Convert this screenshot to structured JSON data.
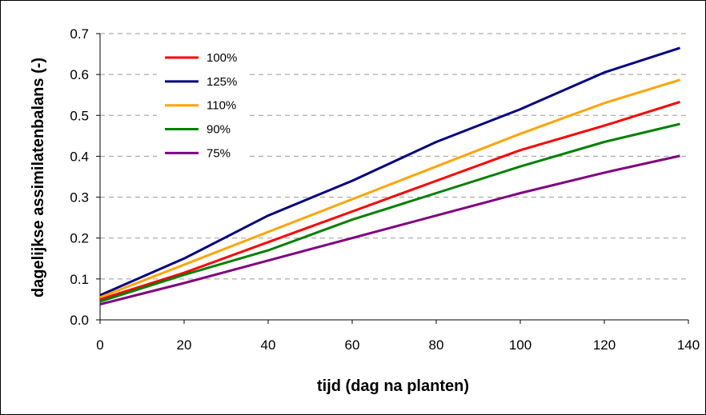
{
  "chart_data": {
    "type": "line",
    "xlabel": "tijd (dag na planten)",
    "ylabel": "dagelijkse assimilatenbalans (-)",
    "xlim": [
      0,
      140
    ],
    "ylim": [
      0,
      0.7
    ],
    "x_ticks": [
      "0",
      "20",
      "40",
      "60",
      "80",
      "100",
      "120",
      "140"
    ],
    "y_ticks": [
      "0.0",
      "0.1",
      "0.2",
      "0.3",
      "0.4",
      "0.5",
      "0.6",
      "0.7"
    ],
    "grid": "horizontal dashed",
    "legend_position": "top-left",
    "series": [
      {
        "name": "100%",
        "color": "#ff0000",
        "x": [
          0,
          20,
          40,
          60,
          80,
          100,
          120,
          138
        ],
        "values": [
          0.05,
          0.115,
          0.19,
          0.265,
          0.34,
          0.415,
          0.475,
          0.533
        ]
      },
      {
        "name": "125%",
        "color": "#000080",
        "x": [
          0,
          20,
          40,
          60,
          80,
          100,
          120,
          138
        ],
        "values": [
          0.06,
          0.15,
          0.255,
          0.34,
          0.435,
          0.515,
          0.605,
          0.665
        ]
      },
      {
        "name": "110%",
        "color": "#ffa500",
        "x": [
          0,
          20,
          40,
          60,
          80,
          100,
          120,
          138
        ],
        "values": [
          0.055,
          0.135,
          0.215,
          0.295,
          0.375,
          0.455,
          0.53,
          0.587
        ]
      },
      {
        "name": "90%",
        "color": "#008000",
        "x": [
          0,
          20,
          40,
          60,
          80,
          100,
          120,
          138
        ],
        "values": [
          0.045,
          0.11,
          0.17,
          0.245,
          0.31,
          0.375,
          0.435,
          0.479
        ]
      },
      {
        "name": "75%",
        "color": "#800080",
        "x": [
          0,
          20,
          40,
          60,
          80,
          100,
          120,
          138
        ],
        "values": [
          0.038,
          0.09,
          0.145,
          0.2,
          0.255,
          0.31,
          0.36,
          0.401
        ]
      }
    ]
  }
}
